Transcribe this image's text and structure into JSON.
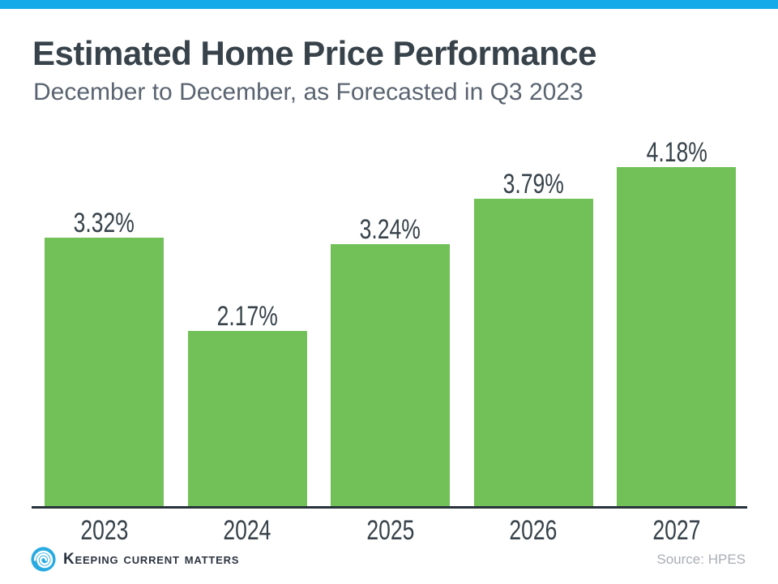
{
  "page": {
    "title": "Estimated Home Price Performance",
    "subtitle": "December to December, as Forecasted in Q3 2023",
    "source": "Source: HPES",
    "brand": "Keeping Current Matters"
  },
  "colors": {
    "top_bar": "#14AAE9",
    "bar_green": "#72C158",
    "title_text": "#37424A",
    "subtitle_text": "#5A6470",
    "label_text": "#37424A",
    "axis_line": "#28323A",
    "source_text": "#A9AEB4",
    "logo_blue": "#29ABE2",
    "logo_swirl": "#FFFFFF",
    "logo_text": "#2B3440"
  },
  "chart_data": {
    "type": "bar",
    "title": "Estimated Home Price Performance",
    "subtitle": "December to December, as Forecasted in Q3 2023",
    "categories": [
      "2023",
      "2024",
      "2025",
      "2026",
      "2027"
    ],
    "values": [
      3.32,
      2.17,
      3.24,
      3.79,
      4.18
    ],
    "value_labels": [
      "3.32%",
      "2.17%",
      "3.24%",
      "3.79%",
      "4.18%"
    ],
    "xlabel": "",
    "ylabel": "",
    "ylim": [
      0,
      4.64
    ],
    "grid": false,
    "legend": false,
    "bar_color": "#72C158",
    "source": "Source: HPES"
  }
}
